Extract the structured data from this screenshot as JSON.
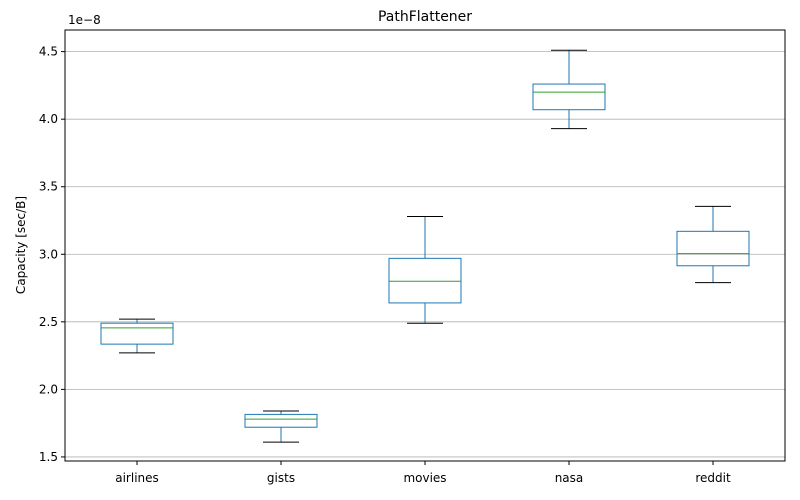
{
  "chart_data": {
    "type": "box",
    "title": "PathFlattener",
    "xlabel": "",
    "ylabel": "Capacity [sec/B]",
    "y_offset_text": "1e−8",
    "y_scale_factor": 1e-08,
    "ylim": [
      1.47,
      4.66
    ],
    "yticks": [
      1.5,
      2.0,
      2.5,
      3.0,
      3.5,
      4.0,
      4.5
    ],
    "ytick_labels": [
      "1.5",
      "2.0",
      "2.5",
      "3.0",
      "3.5",
      "4.0",
      "4.5"
    ],
    "grid": "horizontal",
    "categories": [
      "airlines",
      "gists",
      "movies",
      "nasa",
      "reddit"
    ],
    "boxes": [
      {
        "category": "airlines",
        "whisker_low": 2.27,
        "q1": 2.335,
        "median": 2.455,
        "q3": 2.49,
        "whisker_high": 2.52
      },
      {
        "category": "gists",
        "whisker_low": 1.61,
        "q1": 1.72,
        "median": 1.78,
        "q3": 1.815,
        "whisker_high": 1.84
      },
      {
        "category": "movies",
        "whisker_low": 2.49,
        "q1": 2.64,
        "median": 2.8,
        "q3": 2.97,
        "whisker_high": 3.28
      },
      {
        "category": "nasa",
        "whisker_low": 3.93,
        "q1": 4.07,
        "median": 4.2,
        "q3": 4.26,
        "whisker_high": 4.51
      },
      {
        "category": "reddit",
        "whisker_low": 2.79,
        "q1": 2.915,
        "median": 3.005,
        "q3": 3.17,
        "whisker_high": 3.355
      }
    ],
    "colors": {
      "box": "#1f77b4",
      "median": "#2ca02c",
      "whisker_cap": "#000000",
      "grid": "#b0b0b0",
      "axis": "#000000"
    }
  }
}
